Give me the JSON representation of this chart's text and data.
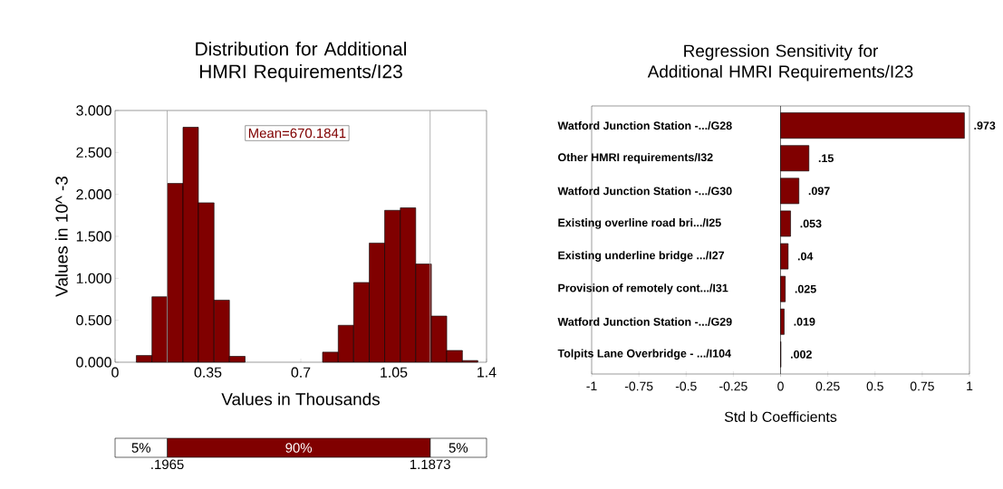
{
  "chart_data": [
    {
      "type": "histogram",
      "title": "Distribution for Additional HMRI Requirements/I23",
      "xlabel": "Values in Thousands",
      "ylabel": "Values in 10^ -3",
      "bins": [
        0.08,
        0.139,
        0.197,
        0.256,
        0.314,
        0.373,
        0.431,
        0.49,
        0.548,
        0.607,
        0.665,
        0.724,
        0.782,
        0.841,
        0.899,
        0.958,
        1.016,
        1.075,
        1.133,
        1.192,
        1.25,
        1.309,
        1.367
      ],
      "values": [
        0.08,
        0.78,
        2.13,
        2.8,
        1.9,
        0.74,
        0.07,
        0,
        0,
        0,
        0,
        0,
        0.12,
        0.44,
        0.95,
        1.42,
        1.81,
        1.84,
        1.17,
        0.55,
        0.14,
        0.02
      ],
      "color": "#800000",
      "xlim": [
        0,
        1.4
      ],
      "ylim": [
        0,
        3
      ],
      "xticks": [
        0,
        0.35,
        0.7,
        1.05,
        1.4
      ],
      "yticks": [
        {
          "value": 0,
          "label": "0.000"
        },
        {
          "value": 0.5,
          "label": "0.500"
        },
        {
          "value": 1,
          "label": "1.000"
        },
        {
          "value": 1.5,
          "label": "1.500"
        },
        {
          "value": 2,
          "label": "2.000"
        },
        {
          "value": 2.5,
          "label": "2.500"
        },
        {
          "value": 3,
          "label": "3.000"
        }
      ],
      "ref_lines": [
        {
          "axis": "x",
          "value": 0.1965,
          "color": "#a0a0a0"
        },
        {
          "axis": "x",
          "value": 1.1873,
          "color": "#a0a0a0"
        }
      ],
      "annotations": [
        "Mean=670.1841"
      ]
    },
    {
      "type": "bar",
      "orientation": "horizontal",
      "stacked": true,
      "categories": [
        null
      ],
      "series": [
        {
          "color": "#ffffff",
          "values": [
            0.1965
          ]
        },
        {
          "color": "#800000",
          "values": [
            0.9908
          ]
        },
        {
          "color": "#ffffff",
          "values": [
            0.2127
          ]
        }
      ],
      "annotations": [
        "5%",
        "90%",
        "5%"
      ],
      "xlim": [
        0,
        1.4
      ],
      "xticks": [
        {
          "value": 0.1965,
          "label": ".1965"
        },
        {
          "value": 1.1873,
          "label": "1.1873"
        }
      ]
    },
    {
      "type": "bar",
      "orientation": "horizontal",
      "title": "Regression Sensitivity for Additional HMRI Requirements/I23",
      "xlabel": "Std b Coefficients",
      "categories": [
        "Watford Junction Station -.../G28",
        "Other HMRI requirements/I32",
        "Watford Junction Station -.../G30",
        "Existing overline road bri.../I25",
        "Existing underline bridge .../I27",
        "Provision of remotely cont.../I31",
        "Watford Junction Station -.../G29",
        "Tolpits Lane Overbridge - .../I104"
      ],
      "values": [
        0.973,
        0.15,
        0.097,
        0.053,
        0.04,
        0.025,
        0.019,
        0.002
      ],
      "value_labels": [
        ".973",
        ".15",
        ".097",
        ".053",
        ".04",
        ".025",
        ".019",
        ".002"
      ],
      "color": "#800000",
      "xlim": [
        -1,
        1
      ],
      "xticks": [
        -1,
        -0.75,
        -0.5,
        -0.25,
        0,
        0.25,
        0.5,
        0.75,
        1
      ]
    }
  ]
}
